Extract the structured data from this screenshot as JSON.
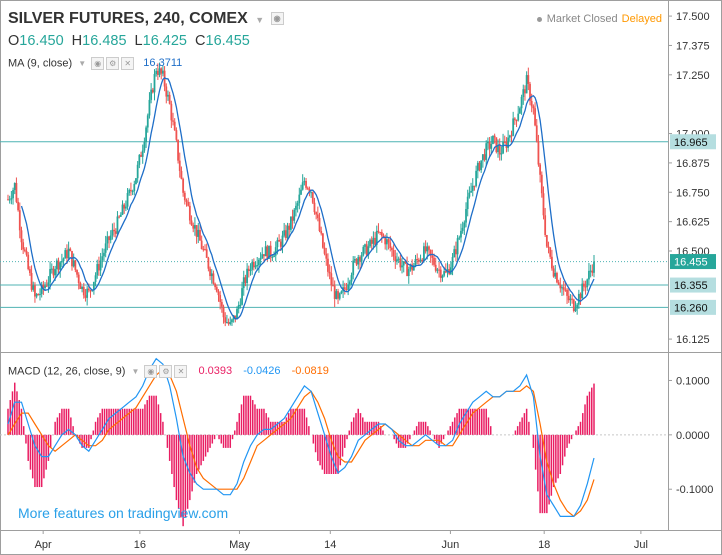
{
  "header": {
    "symbol": "SILVER FUTURES, 240, COMEX",
    "open_label": "O",
    "open": "16.450",
    "high_label": "H",
    "high": "16.485",
    "low_label": "L",
    "low": "16.425",
    "close_label": "C",
    "close": "16.455",
    "market_status": "Market Closed",
    "delay": "Delayed"
  },
  "ma": {
    "label": "MA (9, close)",
    "value": "16.3711"
  },
  "macd": {
    "label": "MACD (12, 26, close, 9)",
    "hist": "0.0393",
    "macd": "-0.0426",
    "signal": "-0.0819"
  },
  "promo": "More features on tradingview.com",
  "colors": {
    "up": "#26a69a",
    "down": "#ef5350",
    "ma": "#1e6ec8",
    "macd_line": "#2196f3",
    "signal_line": "#ff6d00",
    "histogram": "#e91e63",
    "level_line": "#4fb3b3",
    "price_label_bg": "#b5dee0"
  },
  "chart_data": [
    {
      "type": "candlestick",
      "title": "SILVER FUTURES, 240, COMEX",
      "price_axis_ticks": [
        "17.500",
        "17.375",
        "17.250",
        "17.000",
        "16.875",
        "16.750",
        "16.625",
        "16.500",
        "16.125"
      ],
      "time_axis_ticks": [
        "Apr",
        "16",
        "May",
        "14",
        "Jun",
        "18",
        "Jul"
      ],
      "ylim": [
        16.07,
        17.56
      ],
      "last_price": 16.455,
      "horizontal_levels": [
        16.965,
        16.355,
        16.26
      ],
      "price_labels": [
        "16.965",
        "16.455",
        "16.355",
        "16.260"
      ],
      "close_path": [
        16.72,
        16.78,
        16.56,
        16.42,
        16.3,
        16.33,
        16.38,
        16.44,
        16.46,
        16.5,
        16.42,
        16.34,
        16.32,
        16.4,
        16.48,
        16.55,
        16.6,
        16.67,
        16.74,
        16.82,
        16.95,
        17.12,
        17.28,
        17.24,
        17.12,
        16.95,
        16.75,
        16.66,
        16.58,
        16.5,
        16.42,
        16.35,
        16.22,
        16.18,
        16.24,
        16.36,
        16.44,
        16.47,
        16.5,
        16.49,
        16.52,
        16.56,
        16.62,
        16.7,
        16.8,
        16.76,
        16.62,
        16.48,
        16.36,
        16.28,
        16.34,
        16.42,
        16.48,
        16.5,
        16.53,
        16.57,
        16.55,
        16.5,
        16.46,
        16.42,
        16.43,
        16.47,
        16.5,
        16.46,
        16.42,
        16.4,
        16.46,
        16.56,
        16.68,
        16.78,
        16.87,
        16.93,
        16.97,
        16.92,
        16.96,
        17.04,
        17.12,
        17.22,
        17.1,
        16.8,
        16.52,
        16.42,
        16.36,
        16.3,
        16.27,
        16.32,
        16.38,
        16.455
      ],
      "ma_label": "MA (9, close)"
    },
    {
      "type": "line",
      "title": "MACD (12, 26, close, 9)",
      "yticks": [
        "0.1000",
        "0.0000",
        "-0.1000"
      ],
      "ylim": [
        -0.175,
        0.145
      ],
      "series": [
        {
          "name": "MACD",
          "values": [
            0.02,
            0.06,
            0.06,
            0.02,
            -0.02,
            -0.04,
            -0.04,
            -0.02,
            0.0,
            0.01,
            0.0,
            -0.02,
            -0.03,
            -0.01,
            0.01,
            0.03,
            0.04,
            0.05,
            0.06,
            0.07,
            0.09,
            0.12,
            0.14,
            0.13,
            0.09,
            0.03,
            -0.04,
            -0.07,
            -0.09,
            -0.1,
            -0.1,
            -0.1,
            -0.11,
            -0.11,
            -0.09,
            -0.05,
            -0.02,
            0.0,
            0.01,
            0.01,
            0.02,
            0.03,
            0.05,
            0.07,
            0.09,
            0.08,
            0.04,
            0.0,
            -0.04,
            -0.07,
            -0.06,
            -0.04,
            -0.01,
            0.0,
            0.01,
            0.02,
            0.02,
            0.01,
            -0.01,
            -0.02,
            -0.02,
            -0.01,
            0.0,
            -0.01,
            -0.02,
            -0.02,
            -0.01,
            0.02,
            0.04,
            0.06,
            0.07,
            0.08,
            0.07,
            0.07,
            0.08,
            0.08,
            0.09,
            0.11,
            0.07,
            -0.04,
            -0.11,
            -0.13,
            -0.15,
            -0.15,
            -0.15,
            -0.13,
            -0.09,
            -0.0426
          ]
        },
        {
          "name": "Signal",
          "values": [
            0.0,
            0.02,
            0.04,
            0.04,
            0.02,
            -0.0,
            -0.02,
            -0.03,
            -0.02,
            -0.01,
            -0.0,
            -0.01,
            -0.02,
            -0.02,
            -0.01,
            0.01,
            0.02,
            0.03,
            0.04,
            0.05,
            0.07,
            0.09,
            0.11,
            0.12,
            0.11,
            0.08,
            0.03,
            -0.02,
            -0.06,
            -0.08,
            -0.09,
            -0.1,
            -0.1,
            -0.1,
            -0.1,
            -0.08,
            -0.05,
            -0.02,
            -0.01,
            0.0,
            0.01,
            0.02,
            0.03,
            0.05,
            0.07,
            0.08,
            0.06,
            0.03,
            -0.01,
            -0.04,
            -0.05,
            -0.05,
            -0.03,
            -0.01,
            -0.0,
            0.01,
            0.02,
            0.01,
            0.0,
            -0.01,
            -0.02,
            -0.02,
            -0.01,
            -0.01,
            -0.01,
            -0.02,
            -0.02,
            -0.0,
            0.02,
            0.04,
            0.05,
            0.06,
            0.07,
            0.07,
            0.08,
            0.08,
            0.08,
            0.09,
            0.08,
            0.02,
            -0.05,
            -0.09,
            -0.12,
            -0.14,
            -0.15,
            -0.14,
            -0.12,
            -0.0819
          ]
        }
      ]
    }
  ]
}
